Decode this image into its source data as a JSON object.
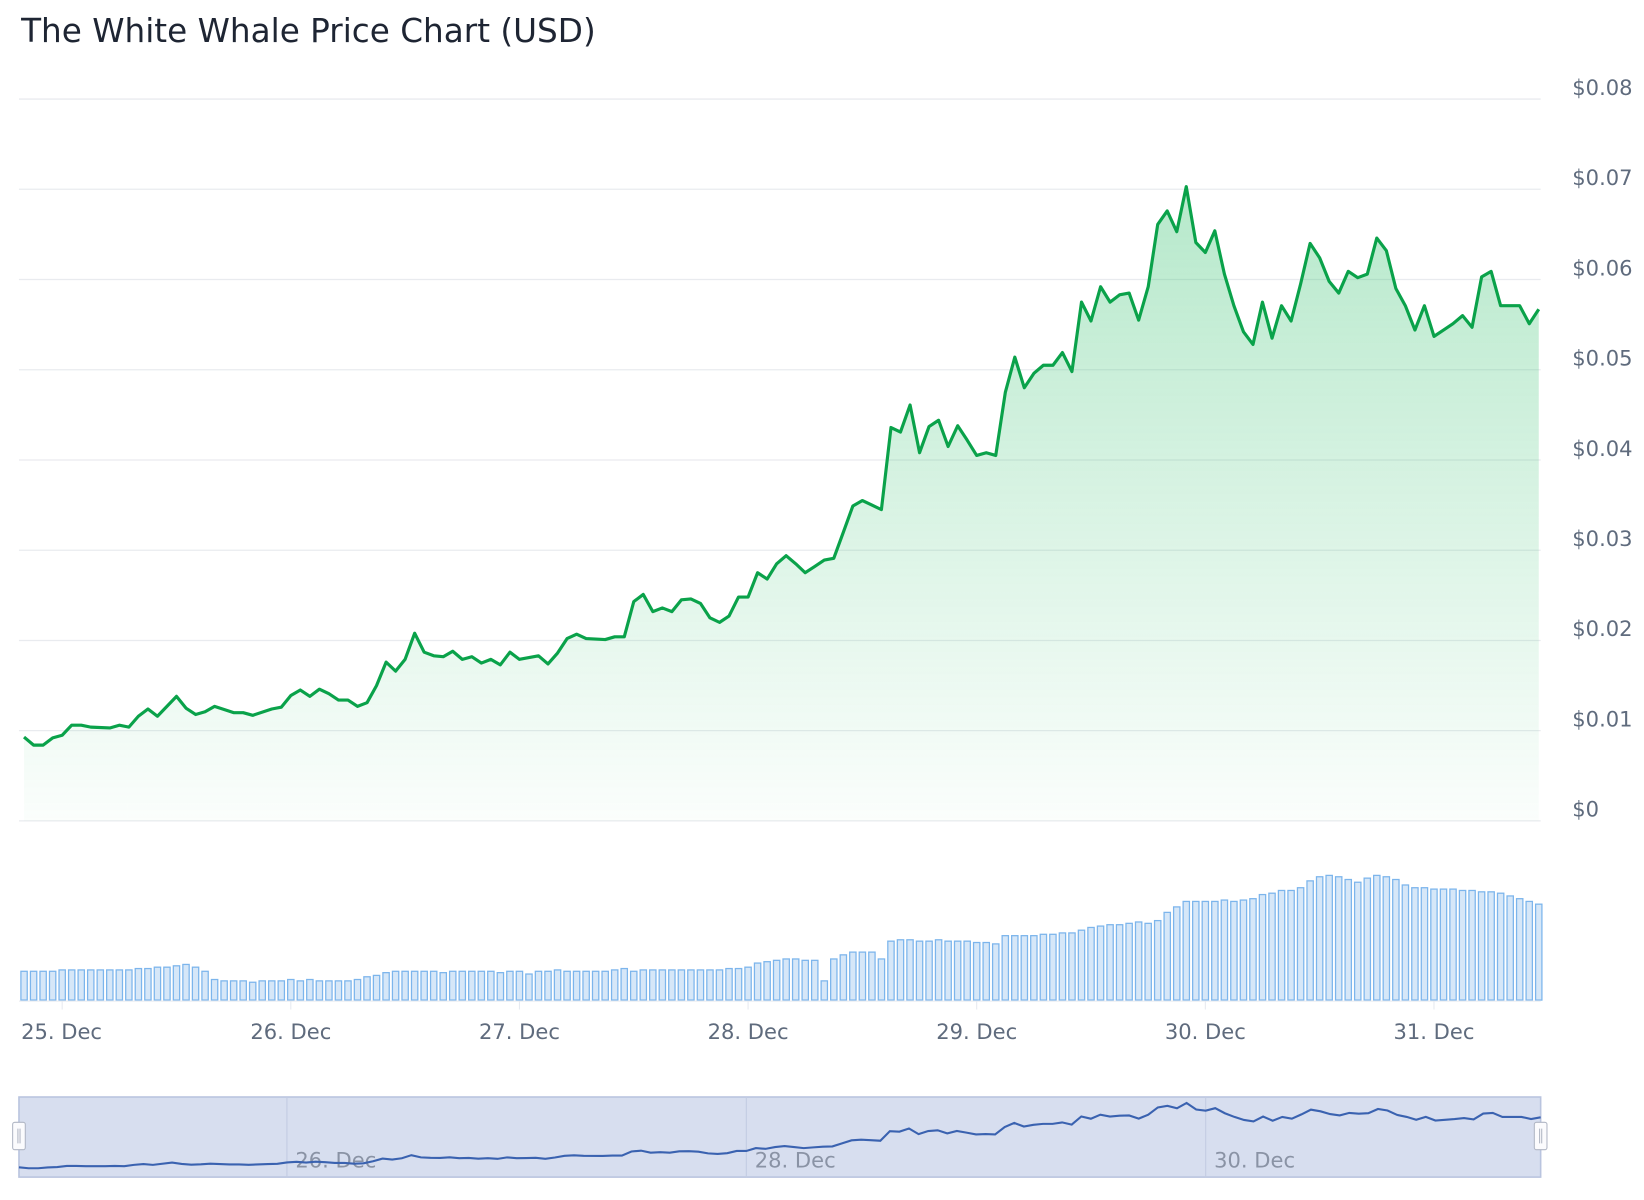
{
  "title": "The White Whale Price Chart (USD)",
  "colors": {
    "price_line": "#0aa24a",
    "price_fill": "#2fbf6a",
    "volume_bar": "#7cb5ec",
    "navigator_line": "#3a62b0",
    "navigator_fill": "#d7deef"
  },
  "chart_data": {
    "type": "area",
    "title": "The White Whale Price Chart (USD)",
    "xlabel": "",
    "ylabel": "",
    "ylim": [
      0,
      0.08
    ],
    "grid": true,
    "legend": "none",
    "y_ticks": [
      "$0",
      "$0.01",
      "$0.02",
      "$0.03",
      "$0.04",
      "$0.05",
      "$0.06",
      "$0.07",
      "$0.08"
    ],
    "x_ticks": [
      "25. Dec",
      "26. Dec",
      "27. Dec",
      "28. Dec",
      "29. Dec",
      "30. Dec",
      "31. Dec"
    ],
    "navigator_ticks": [
      "26. Dec",
      "28. Dec",
      "30. Dec"
    ],
    "price": [
      [
        "Dec 24 20:00",
        0.0093
      ],
      [
        "Dec 24 21:00",
        0.0084
      ],
      [
        "Dec 24 22:00",
        0.0084
      ],
      [
        "Dec 24 23:00",
        0.0092
      ],
      [
        "Dec 25 00:00",
        0.0095
      ],
      [
        "Dec 25 01:00",
        0.0106
      ],
      [
        "Dec 25 02:00",
        0.0106
      ],
      [
        "Dec 25 03:00",
        0.0104
      ],
      [
        "Dec 25 05:00",
        0.0103
      ],
      [
        "Dec 25 06:00",
        0.0106
      ],
      [
        "Dec 25 07:00",
        0.0104
      ],
      [
        "Dec 25 08:00",
        0.0116
      ],
      [
        "Dec 25 09:00",
        0.0124
      ],
      [
        "Dec 25 10:00",
        0.0116
      ],
      [
        "Dec 25 12:00",
        0.0138
      ],
      [
        "Dec 25 13:00",
        0.0125
      ],
      [
        "Dec 25 14:00",
        0.0118
      ],
      [
        "Dec 25 15:00",
        0.0121
      ],
      [
        "Dec 25 16:00",
        0.0127
      ],
      [
        "Dec 25 18:00",
        0.012
      ],
      [
        "Dec 25 19:00",
        0.012
      ],
      [
        "Dec 25 20:00",
        0.0117
      ],
      [
        "Dec 25 22:00",
        0.0124
      ],
      [
        "Dec 25 23:00",
        0.0126
      ],
      [
        "Dec 26 00:00",
        0.0139
      ],
      [
        "Dec 26 01:00",
        0.0145
      ],
      [
        "Dec 26 02:00",
        0.0138
      ],
      [
        "Dec 26 03:00",
        0.0146
      ],
      [
        "Dec 26 04:00",
        0.0141
      ],
      [
        "Dec 26 05:00",
        0.0134
      ],
      [
        "Dec 26 06:00",
        0.0134
      ],
      [
        "Dec 26 07:00",
        0.0127
      ],
      [
        "Dec 26 08:00",
        0.0131
      ],
      [
        "Dec 26 09:00",
        0.015
      ],
      [
        "Dec 26 10:00",
        0.0176
      ],
      [
        "Dec 26 11:00",
        0.0166
      ],
      [
        "Dec 26 12:00",
        0.0179
      ],
      [
        "Dec 26 13:00",
        0.0208
      ],
      [
        "Dec 26 14:00",
        0.0187
      ],
      [
        "Dec 26 15:00",
        0.0183
      ],
      [
        "Dec 26 16:00",
        0.0182
      ],
      [
        "Dec 26 17:00",
        0.0188
      ],
      [
        "Dec 26 18:00",
        0.0179
      ],
      [
        "Dec 26 19:00",
        0.0182
      ],
      [
        "Dec 26 20:00",
        0.0175
      ],
      [
        "Dec 26 21:00",
        0.0179
      ],
      [
        "Dec 26 22:00",
        0.0173
      ],
      [
        "Dec 26 23:00",
        0.0187
      ],
      [
        "Dec 27 00:00",
        0.0179
      ],
      [
        "Dec 27 01:00",
        0.0181
      ],
      [
        "Dec 27 02:00",
        0.0183
      ],
      [
        "Dec 27 03:00",
        0.0174
      ],
      [
        "Dec 27 04:00",
        0.0186
      ],
      [
        "Dec 27 05:00",
        0.0202
      ],
      [
        "Dec 27 06:00",
        0.0207
      ],
      [
        "Dec 27 07:00",
        0.0202
      ],
      [
        "Dec 27 09:00",
        0.0201
      ],
      [
        "Dec 27 10:00",
        0.0204
      ],
      [
        "Dec 27 11:00",
        0.0204
      ],
      [
        "Dec 27 12:00",
        0.0243
      ],
      [
        "Dec 27 13:00",
        0.0251
      ],
      [
        "Dec 27 14:00",
        0.0232
      ],
      [
        "Dec 27 15:00",
        0.0236
      ],
      [
        "Dec 27 16:00",
        0.0232
      ],
      [
        "Dec 27 17:00",
        0.0245
      ],
      [
        "Dec 27 18:00",
        0.0246
      ],
      [
        "Dec 27 19:00",
        0.0241
      ],
      [
        "Dec 27 20:00",
        0.0225
      ],
      [
        "Dec 27 21:00",
        0.022
      ],
      [
        "Dec 27 22:00",
        0.0227
      ],
      [
        "Dec 27 23:00",
        0.0248
      ],
      [
        "Dec 28 00:00",
        0.0248
      ],
      [
        "Dec 28 01:00",
        0.0275
      ],
      [
        "Dec 28 02:00",
        0.0268
      ],
      [
        "Dec 28 03:00",
        0.0285
      ],
      [
        "Dec 28 04:00",
        0.0294
      ],
      [
        "Dec 28 05:00",
        0.0285
      ],
      [
        "Dec 28 06:00",
        0.0275
      ],
      [
        "Dec 28 07:00",
        0.0282
      ],
      [
        "Dec 28 08:00",
        0.0289
      ],
      [
        "Dec 28 09:00",
        0.0291
      ],
      [
        "Dec 28 10:00",
        0.032
      ],
      [
        "Dec 28 11:00",
        0.0349
      ],
      [
        "Dec 28 12:00",
        0.0355
      ],
      [
        "Dec 28 13:00",
        0.035
      ],
      [
        "Dec 28 14:00",
        0.0345
      ],
      [
        "Dec 28 15:00",
        0.0436
      ],
      [
        "Dec 28 16:00",
        0.0431
      ],
      [
        "Dec 28 17:00",
        0.0461
      ],
      [
        "Dec 28 18:00",
        0.0408
      ],
      [
        "Dec 28 19:00",
        0.0437
      ],
      [
        "Dec 28 20:00",
        0.0444
      ],
      [
        "Dec 28 21:00",
        0.0415
      ],
      [
        "Dec 28 22:00",
        0.0438
      ],
      [
        "Dec 28 23:00",
        0.0422
      ],
      [
        "Dec 29 00:00",
        0.0405
      ],
      [
        "Dec 29 01:00",
        0.0408
      ],
      [
        "Dec 29 02:00",
        0.0405
      ],
      [
        "Dec 29 03:00",
        0.0475
      ],
      [
        "Dec 29 04:00",
        0.0514
      ],
      [
        "Dec 29 05:00",
        0.048
      ],
      [
        "Dec 29 06:00",
        0.0496
      ],
      [
        "Dec 29 07:00",
        0.0505
      ],
      [
        "Dec 29 08:00",
        0.0505
      ],
      [
        "Dec 29 09:00",
        0.0519
      ],
      [
        "Dec 29 10:00",
        0.0498
      ],
      [
        "Dec 29 11:00",
        0.0575
      ],
      [
        "Dec 29 12:00",
        0.0554
      ],
      [
        "Dec 29 13:00",
        0.0592
      ],
      [
        "Dec 29 14:00",
        0.0575
      ],
      [
        "Dec 29 15:00",
        0.0583
      ],
      [
        "Dec 29 16:00",
        0.0585
      ],
      [
        "Dec 29 17:00",
        0.0555
      ],
      [
        "Dec 29 18:00",
        0.0592
      ],
      [
        "Dec 29 19:00",
        0.0661
      ],
      [
        "Dec 29 20:00",
        0.0676
      ],
      [
        "Dec 29 21:00",
        0.0653
      ],
      [
        "Dec 29 22:00",
        0.0703
      ],
      [
        "Dec 29 23:00",
        0.0641
      ],
      [
        "Dec 30 00:00",
        0.063
      ],
      [
        "Dec 30 01:00",
        0.0654
      ],
      [
        "Dec 30 02:00",
        0.0606
      ],
      [
        "Dec 30 03:00",
        0.0571
      ],
      [
        "Dec 30 04:00",
        0.0542
      ],
      [
        "Dec 30 05:00",
        0.0528
      ],
      [
        "Dec 30 06:00",
        0.0575
      ],
      [
        "Dec 30 07:00",
        0.0535
      ],
      [
        "Dec 30 08:00",
        0.0571
      ],
      [
        "Dec 30 09:00",
        0.0554
      ],
      [
        "Dec 30 10:00",
        0.0595
      ],
      [
        "Dec 30 11:00",
        0.064
      ],
      [
        "Dec 30 12:00",
        0.0624
      ],
      [
        "Dec 30 13:00",
        0.0598
      ],
      [
        "Dec 30 14:00",
        0.0585
      ],
      [
        "Dec 30 15:00",
        0.0609
      ],
      [
        "Dec 30 16:00",
        0.0602
      ],
      [
        "Dec 30 17:00",
        0.0606
      ],
      [
        "Dec 30 18:00",
        0.0646
      ],
      [
        "Dec 30 19:00",
        0.0632
      ],
      [
        "Dec 30 20:00",
        0.059
      ],
      [
        "Dec 30 21:00",
        0.0571
      ],
      [
        "Dec 30 22:00",
        0.0544
      ],
      [
        "Dec 30 23:00",
        0.0571
      ],
      [
        "Dec 31 00:00",
        0.0537
      ],
      [
        "Dec 31 01:00",
        0.0544
      ],
      [
        "Dec 31 02:00",
        0.0551
      ],
      [
        "Dec 31 03:00",
        0.056
      ],
      [
        "Dec 31 04:00",
        0.0547
      ],
      [
        "Dec 31 05:00",
        0.0603
      ],
      [
        "Dec 31 06:00",
        0.0609
      ],
      [
        "Dec 31 07:00",
        0.0571
      ],
      [
        "Dec 31 08:00",
        0.0571
      ],
      [
        "Dec 31 09:00",
        0.0571
      ],
      [
        "Dec 31 10:00",
        0.0551
      ],
      [
        "Dec 31 11:00",
        0.0567
      ]
    ],
    "volume_start": "Dec 24 20:00",
    "volume_relative": [
      21,
      21,
      21,
      21,
      22,
      22,
      22,
      22,
      22,
      22,
      22,
      22,
      23,
      23,
      24,
      24,
      25,
      26,
      24,
      21,
      15,
      14,
      14,
      14,
      13,
      14,
      14,
      14,
      15,
      14,
      15,
      14,
      14,
      14,
      14,
      15,
      17,
      18,
      20,
      21,
      21,
      21,
      21,
      21,
      20,
      21,
      21,
      21,
      21,
      21,
      20,
      21,
      21,
      19,
      21,
      21,
      22,
      21,
      21,
      21,
      21,
      21,
      22,
      23,
      21,
      22,
      22,
      22,
      22,
      22,
      22,
      22,
      22,
      22,
      23,
      23,
      24,
      27,
      28,
      29,
      30,
      30,
      29,
      29,
      14,
      30,
      33,
      35,
      35,
      35,
      30,
      43,
      44,
      44,
      43,
      43,
      44,
      43,
      43,
      43,
      42,
      42,
      41,
      47,
      47,
      47,
      47,
      48,
      48,
      49,
      49,
      51,
      53,
      54,
      55,
      55,
      56,
      57,
      56,
      58,
      64,
      68,
      72,
      72,
      72,
      72,
      73,
      72,
      73,
      74,
      77,
      78,
      80,
      80,
      82,
      87,
      90,
      91,
      90,
      88,
      86,
      89,
      91,
      90,
      88,
      84,
      82,
      82,
      81,
      81,
      81,
      80,
      80,
      79,
      79,
      78,
      76,
      74,
      72,
      70
    ]
  }
}
